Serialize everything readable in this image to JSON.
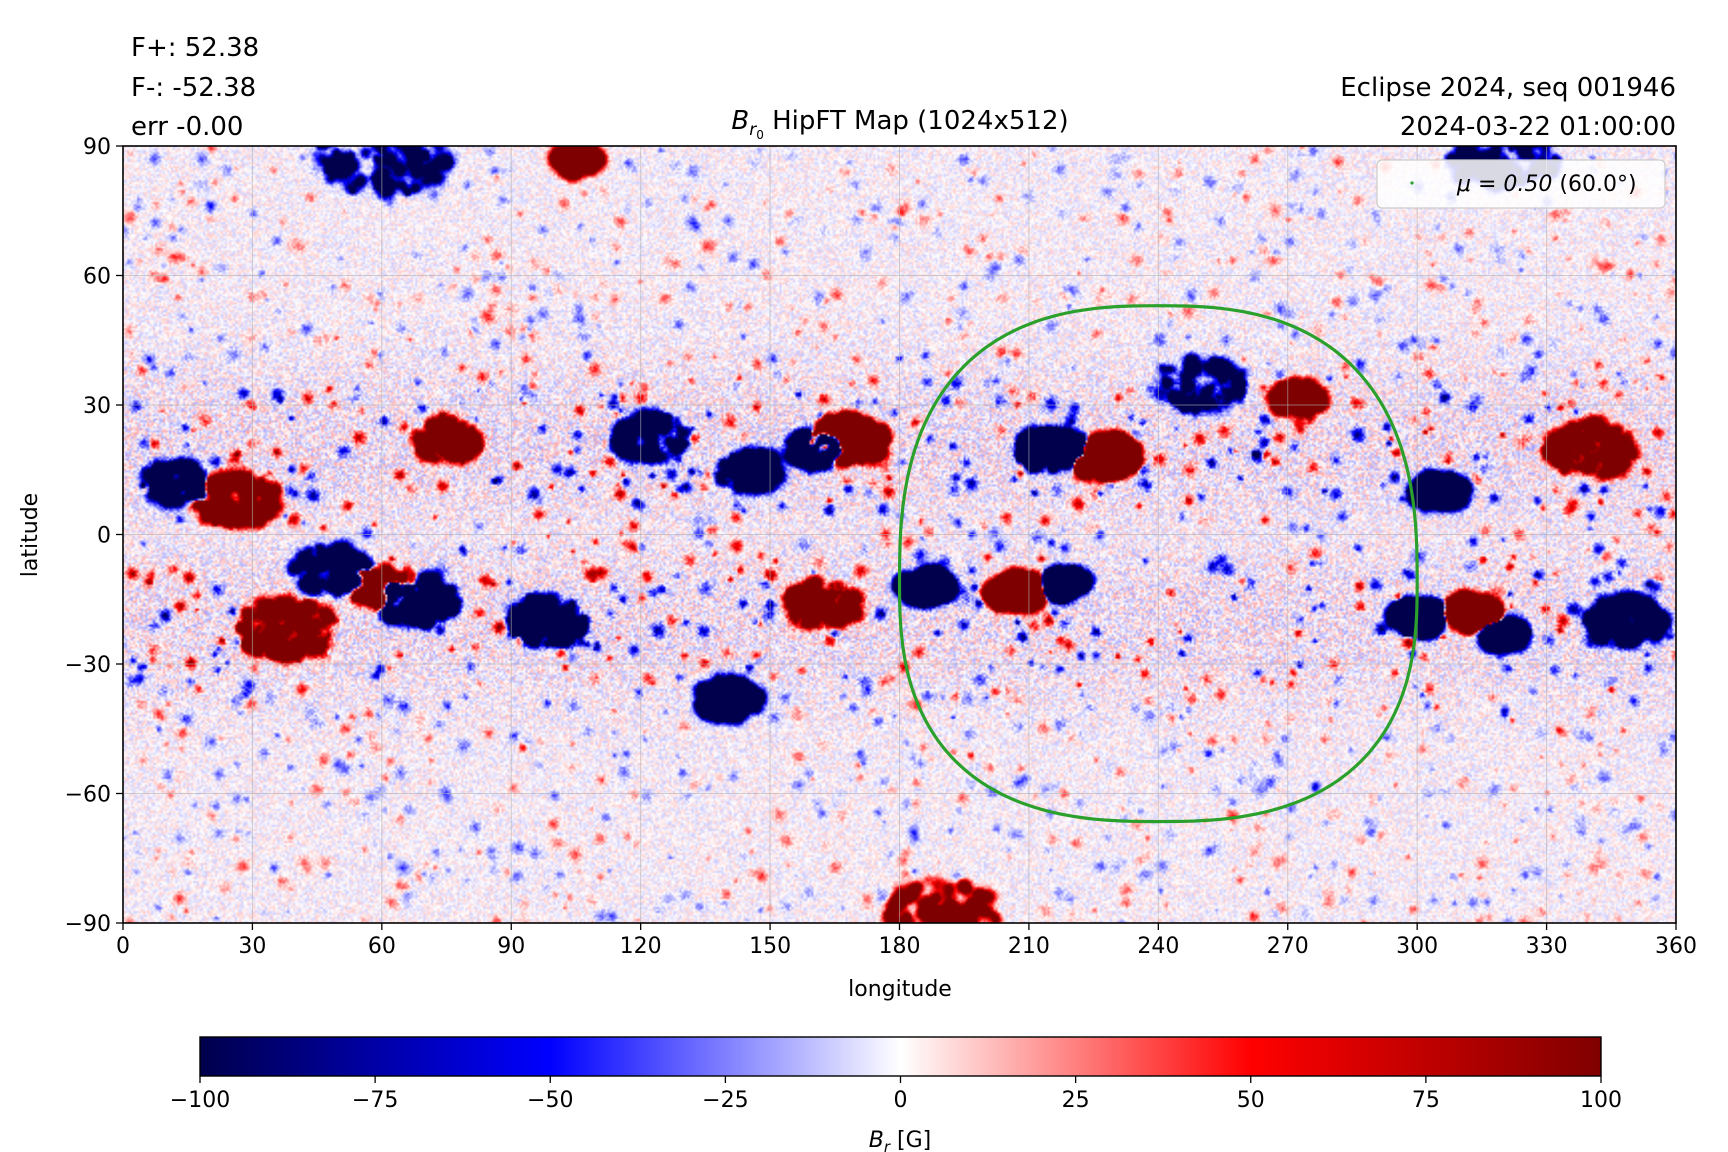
{
  "header": {
    "stats": [
      "F+: 52.38",
      "F-: -52.38",
      "err -0.00"
    ],
    "source": "Eclipse 2024, seq 001946",
    "datetime": "2024-03-22 01:00:00"
  },
  "chart_data": {
    "type": "heatmap",
    "title_symbol": "B",
    "title_subscript": "r",
    "title_subsubscript": "0",
    "title_rest": " HipFT Map (1024x512)",
    "xlabel": "longitude",
    "ylabel": "latitude",
    "xlim": [
      0,
      360
    ],
    "ylim": [
      -90,
      90
    ],
    "xticks": [
      0,
      30,
      60,
      90,
      120,
      150,
      180,
      210,
      240,
      270,
      300,
      330,
      360
    ],
    "yticks": [
      -90,
      -60,
      -30,
      0,
      30,
      60,
      90
    ],
    "xtick_labels": [
      "0",
      "30",
      "60",
      "90",
      "120",
      "150",
      "180",
      "210",
      "240",
      "270",
      "300",
      "330",
      "360"
    ],
    "ytick_labels": [
      "−90",
      "−60",
      "−30",
      "0",
      "30",
      "60",
      "90"
    ],
    "grid": true,
    "colormap": {
      "name": "seismic",
      "vmin": -100,
      "vmax": 100,
      "stops": [
        "#00004c",
        "#0000ff",
        "#ffffff",
        "#ff0000",
        "#7f0000"
      ],
      "ticks": [
        -100,
        -75,
        -50,
        -25,
        0,
        25,
        50,
        75,
        100
      ],
      "tick_labels": [
        "−100",
        "−75",
        "−50",
        "−25",
        "0",
        "25",
        "50",
        "75",
        "100"
      ],
      "label_symbol": "B",
      "label_subscript": "r",
      "label_unit": " [G]"
    },
    "mu_contour": {
      "label_math": "μ = 0.50",
      "label_rest": " (60.0°)",
      "color": "#2ca02c",
      "center_lon": 240,
      "lat_top": 53,
      "lat_bottom": -66.5,
      "lon_left": 180,
      "lon_right": 300
    },
    "legend_position": "upper right",
    "active_regions": [
      {
        "lon": 26,
        "lat": 8,
        "sign": 1,
        "strength": 75,
        "spread": 8
      },
      {
        "lon": 12,
        "lat": 12,
        "sign": -1,
        "strength": 60,
        "spread": 6
      },
      {
        "lon": 38,
        "lat": -22,
        "sign": 1,
        "strength": 80,
        "spread": 9
      },
      {
        "lon": 48,
        "lat": -8,
        "sign": -1,
        "strength": 70,
        "spread": 7
      },
      {
        "lon": 68,
        "lat": -15,
        "sign": -1,
        "strength": 85,
        "spread": 7
      },
      {
        "lon": 60,
        "lat": -12,
        "sign": 1,
        "strength": 70,
        "spread": 6
      },
      {
        "lon": 75,
        "lat": 22,
        "sign": 1,
        "strength": 65,
        "spread": 6
      },
      {
        "lon": 98,
        "lat": -20,
        "sign": -1,
        "strength": 75,
        "spread": 7
      },
      {
        "lon": 122,
        "lat": 23,
        "sign": -1,
        "strength": 60,
        "spread": 7
      },
      {
        "lon": 145,
        "lat": 15,
        "sign": -1,
        "strength": 60,
        "spread": 6
      },
      {
        "lon": 140,
        "lat": -38,
        "sign": -1,
        "strength": 75,
        "spread": 6
      },
      {
        "lon": 168,
        "lat": 22,
        "sign": 1,
        "strength": 90,
        "spread": 7
      },
      {
        "lon": 160,
        "lat": 20,
        "sign": -1,
        "strength": 70,
        "spread": 5
      },
      {
        "lon": 162,
        "lat": -16,
        "sign": 1,
        "strength": 60,
        "spread": 7
      },
      {
        "lon": 186,
        "lat": -12,
        "sign": -1,
        "strength": 90,
        "spread": 5
      },
      {
        "lon": 215,
        "lat": 20,
        "sign": -1,
        "strength": 95,
        "spread": 6
      },
      {
        "lon": 228,
        "lat": 18,
        "sign": 1,
        "strength": 95,
        "spread": 6
      },
      {
        "lon": 207,
        "lat": -13,
        "sign": 1,
        "strength": 95,
        "spread": 5
      },
      {
        "lon": 218,
        "lat": -11,
        "sign": -1,
        "strength": 90,
        "spread": 4
      },
      {
        "lon": 250,
        "lat": 35,
        "sign": -1,
        "strength": 55,
        "spread": 8
      },
      {
        "lon": 272,
        "lat": 32,
        "sign": 1,
        "strength": 50,
        "spread": 5
      },
      {
        "lon": 300,
        "lat": -19,
        "sign": -1,
        "strength": 85,
        "spread": 5
      },
      {
        "lon": 313,
        "lat": -18,
        "sign": 1,
        "strength": 90,
        "spread": 5
      },
      {
        "lon": 320,
        "lat": -23,
        "sign": -1,
        "strength": 80,
        "spread": 4
      },
      {
        "lon": 305,
        "lat": 10,
        "sign": -1,
        "strength": 70,
        "spread": 5
      },
      {
        "lon": 340,
        "lat": 20,
        "sign": 1,
        "strength": 75,
        "spread": 8
      },
      {
        "lon": 348,
        "lat": -20,
        "sign": -1,
        "strength": 80,
        "spread": 7
      },
      {
        "lon": 105,
        "lat": 87,
        "sign": 1,
        "strength": 70,
        "spread": 4
      },
      {
        "lon": 190,
        "lat": -88,
        "sign": 1,
        "strength": 80,
        "spread": 10
      },
      {
        "lon": 60,
        "lat": 88,
        "sign": -1,
        "strength": 80,
        "spread": 12
      },
      {
        "lon": 320,
        "lat": 88,
        "sign": -1,
        "strength": 70,
        "spread": 10
      }
    ]
  }
}
